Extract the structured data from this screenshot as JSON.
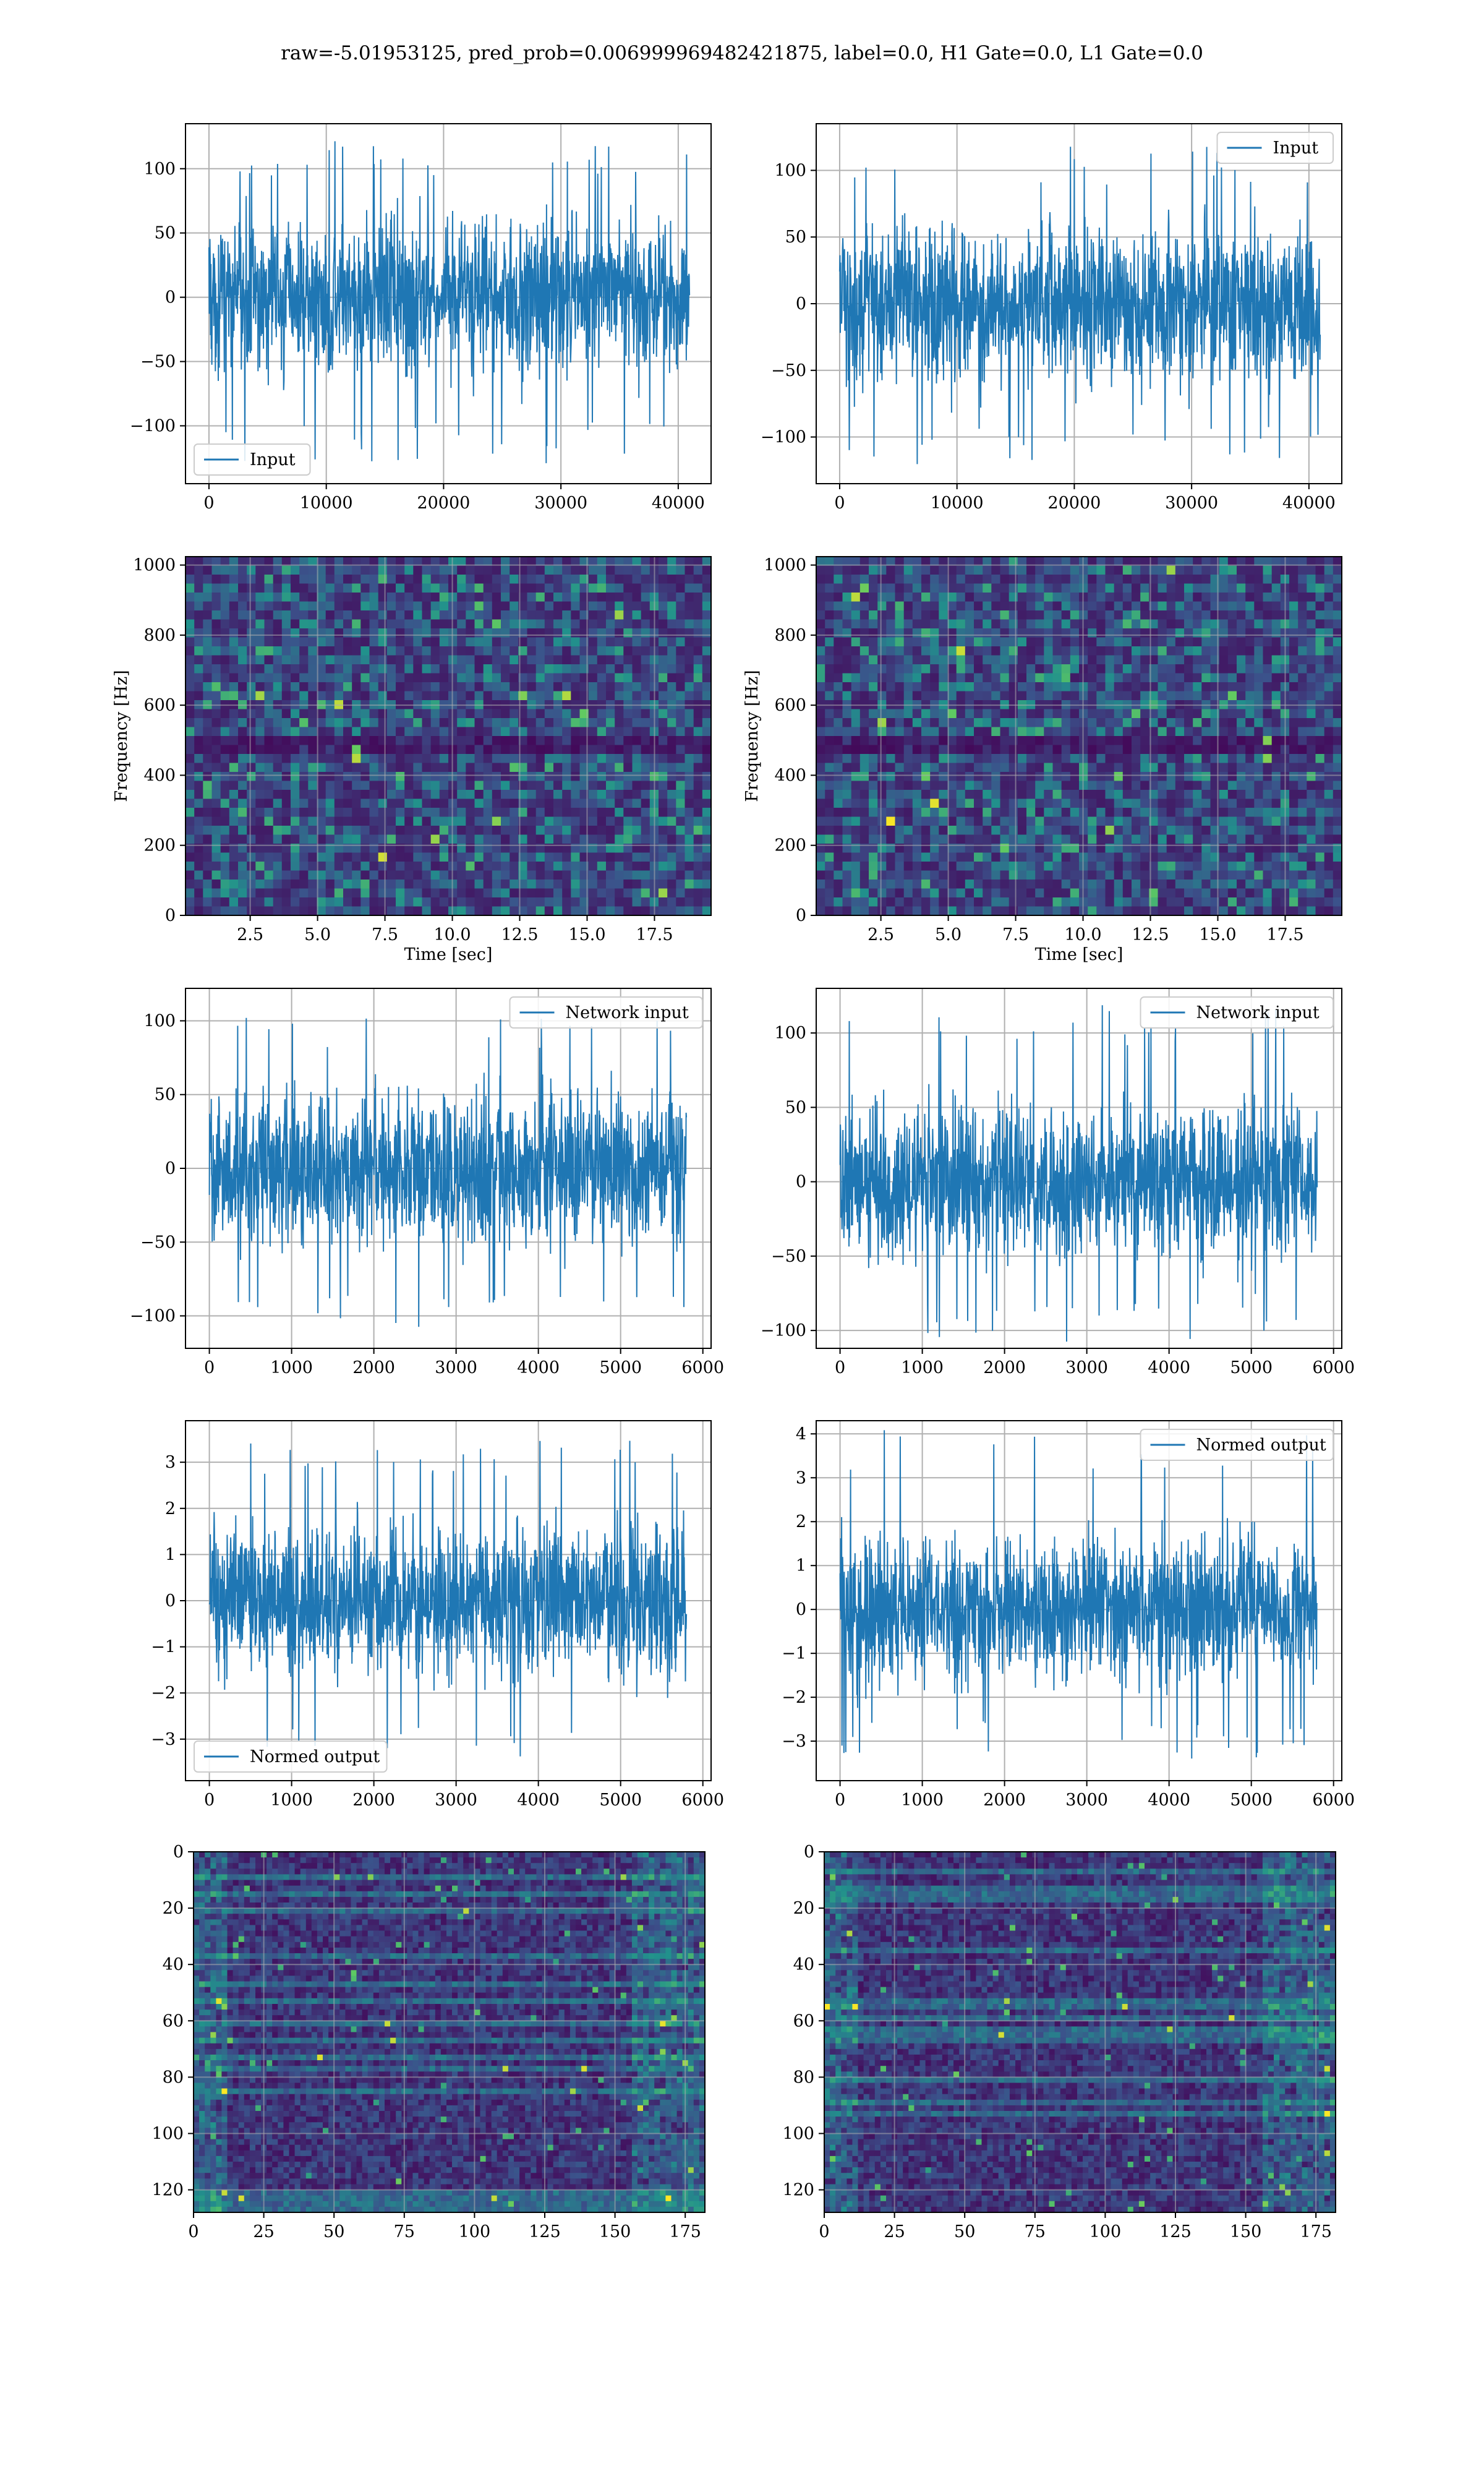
{
  "suptitle": "raw=-5.01953125, pred_prob=0.006999969482421875, label=0.0, H1 Gate=0.0, L1 Gate=0.0",
  "colors": {
    "line": "#1f77b4",
    "grid": "#b0b0b0",
    "viridis_dark": "#440154",
    "viridis_mid": "#21918c",
    "viridis_bright": "#fde725"
  },
  "chart_data": [
    {
      "id": "h1-input",
      "type": "line",
      "series": [
        {
          "name": "Input"
        }
      ],
      "legend": "lower-left",
      "xlim": [
        -2000,
        42800
      ],
      "ylim": [
        -145,
        135
      ],
      "xticks": [
        0,
        10000,
        20000,
        30000,
        40000
      ],
      "yticks": [
        -100,
        -50,
        0,
        50,
        100
      ],
      "signal": {
        "n": 40960,
        "amp": 28,
        "peak_min": -130,
        "peak_max": 123
      }
    },
    {
      "id": "l1-input",
      "type": "line",
      "series": [
        {
          "name": "Input"
        }
      ],
      "legend": "upper-right",
      "xlim": [
        -2000,
        42800
      ],
      "ylim": [
        -135,
        135
      ],
      "xticks": [
        0,
        10000,
        20000,
        30000,
        40000
      ],
      "yticks": [
        -100,
        -50,
        0,
        50,
        100
      ],
      "signal": {
        "n": 40960,
        "amp": 28,
        "peak_min": -122,
        "peak_max": 118
      }
    },
    {
      "id": "h1-spectrogram",
      "type": "heatmap",
      "xlabel": "Time [sec]",
      "ylabel": "Frequency [Hz]",
      "xlim": [
        0.1,
        19.6
      ],
      "ylim": [
        0,
        1024
      ],
      "xticks": [
        2.5,
        5.0,
        7.5,
        10.0,
        12.5,
        15.0,
        17.5
      ],
      "xtick_labels": [
        "2.5",
        "5.0",
        "7.5",
        "10.0",
        "12.5",
        "15.0",
        "17.5"
      ],
      "yticks": [
        0,
        200,
        400,
        600,
        800,
        1000
      ]
    },
    {
      "id": "l1-spectrogram",
      "type": "heatmap",
      "xlabel": "Time [sec]",
      "ylabel": "Frequency [Hz]",
      "xlim": [
        0.1,
        19.6
      ],
      "ylim": [
        0,
        1024
      ],
      "xticks": [
        2.5,
        5.0,
        7.5,
        10.0,
        12.5,
        15.0,
        17.5
      ],
      "xtick_labels": [
        "2.5",
        "5.0",
        "7.5",
        "10.0",
        "12.5",
        "15.0",
        "17.5"
      ],
      "yticks": [
        0,
        200,
        400,
        600,
        800,
        1000
      ]
    },
    {
      "id": "h1-network-input",
      "type": "line",
      "series": [
        {
          "name": "Network input"
        }
      ],
      "legend": "upper-right",
      "xlim": [
        -290,
        6100
      ],
      "ylim": [
        -122,
        122
      ],
      "xticks": [
        0,
        1000,
        2000,
        3000,
        4000,
        5000,
        6000
      ],
      "yticks": [
        -100,
        -50,
        0,
        50,
        100
      ],
      "signal": {
        "n": 5800,
        "amp": 25,
        "peak_min": -110,
        "peak_max": 106
      }
    },
    {
      "id": "l1-network-input",
      "type": "line",
      "series": [
        {
          "name": "Network input"
        }
      ],
      "legend": "upper-right",
      "xlim": [
        -290,
        6100
      ],
      "ylim": [
        -112,
        130
      ],
      "xticks": [
        0,
        1000,
        2000,
        3000,
        4000,
        5000,
        6000
      ],
      "yticks": [
        -100,
        -50,
        0,
        50,
        100
      ],
      "signal": {
        "n": 5800,
        "amp": 25,
        "peak_min": -108,
        "peak_max": 122
      }
    },
    {
      "id": "h1-normed-output",
      "type": "line",
      "series": [
        {
          "name": "Normed output"
        }
      ],
      "legend": "lower-left",
      "xlim": [
        -290,
        6100
      ],
      "ylim": [
        -3.9,
        3.9
      ],
      "xticks": [
        0,
        1000,
        2000,
        3000,
        4000,
        5000,
        6000
      ],
      "yticks": [
        -3,
        -2,
        -1,
        0,
        1,
        2,
        3
      ],
      "signal": {
        "n": 5800,
        "amp": 0.75,
        "peak_min": -3.5,
        "peak_max": 3.5
      }
    },
    {
      "id": "l1-normed-output",
      "type": "line",
      "series": [
        {
          "name": "Normed output"
        }
      ],
      "legend": "upper-right",
      "xlim": [
        -290,
        6100
      ],
      "ylim": [
        -3.9,
        4.3
      ],
      "xticks": [
        0,
        1000,
        2000,
        3000,
        4000,
        5000,
        6000
      ],
      "yticks": [
        -3,
        -2,
        -1,
        0,
        1,
        2,
        3,
        4
      ],
      "signal": {
        "n": 5800,
        "amp": 0.75,
        "peak_min": -3.4,
        "peak_max": 4.1
      }
    },
    {
      "id": "h1-feature-map",
      "type": "heatmap",
      "xlim": [
        0,
        182
      ],
      "ylim": [
        128,
        0
      ],
      "xticks": [
        0,
        25,
        50,
        75,
        100,
        125,
        150,
        175
      ],
      "yticks": [
        0,
        20,
        40,
        60,
        80,
        100,
        120
      ]
    },
    {
      "id": "l1-feature-map",
      "type": "heatmap",
      "xlim": [
        0,
        182
      ],
      "ylim": [
        128,
        0
      ],
      "xticks": [
        0,
        25,
        50,
        75,
        100,
        125,
        150,
        175
      ],
      "yticks": [
        0,
        20,
        40,
        60,
        80,
        100,
        120
      ]
    }
  ]
}
